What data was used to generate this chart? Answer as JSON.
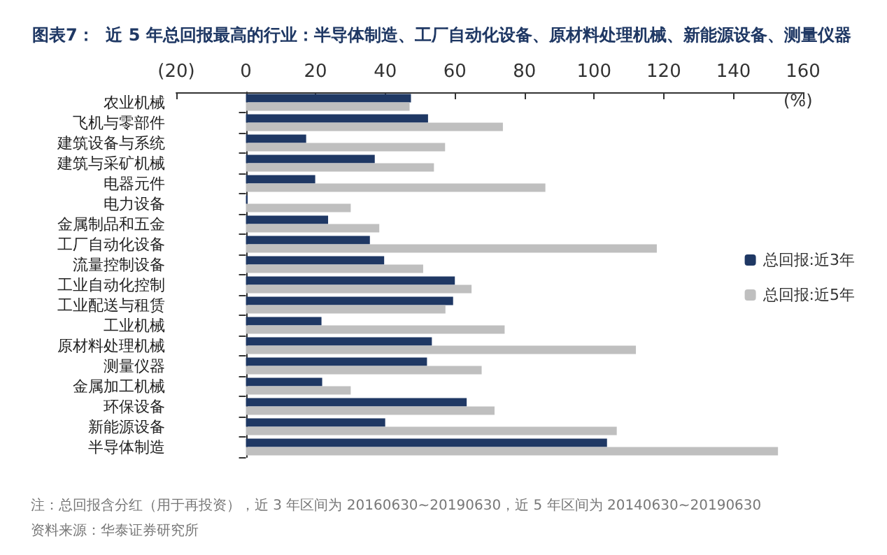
{
  "chart_data": {
    "type": "bar",
    "orientation": "horizontal",
    "title": "图表7：  近 5 年总回报最高的行业：半导体制造、工厂自动化设备、原材料处理机械、新能源设备、测量仪器",
    "xlabel": "(%)",
    "categories": [
      "农业机械",
      "飞机与零部件",
      "建筑设备与系统",
      "建筑与采矿机械",
      "电器元件",
      "电力设备",
      "金属制品和五金",
      "工厂自动化设备",
      "流量控制设备",
      "工业自动化控制",
      "工业配送与租赁",
      "工业机械",
      "原材料处理机械",
      "测量仪器",
      "金属加工机械",
      "环保设备",
      "新能源设备",
      "半导体制造"
    ],
    "series": [
      {
        "name": "总回报:近3年",
        "color": "#1f3864",
        "values": [
          47.4,
          52.3,
          17.3,
          37,
          19.9,
          0.5,
          23.6,
          35.6,
          39.7,
          60,
          59.5,
          21.7,
          53.4,
          52,
          21.9,
          63.4,
          40,
          103.7
        ]
      },
      {
        "name": "总回报:近5年",
        "color": "#bfbfbf",
        "values": [
          47,
          73.8,
          57.2,
          54,
          86,
          30.1,
          38.3,
          118,
          50.9,
          64.8,
          57.3,
          74.3,
          112,
          67.7,
          30.1,
          71.4,
          106.5,
          152.8
        ]
      }
    ],
    "xlim": [
      -20,
      160
    ],
    "xticks": [
      {
        "value": -20,
        "label": "(20)"
      },
      0,
      20,
      40,
      60,
      80,
      100,
      120,
      140,
      160
    ],
    "legend": "right",
    "annotations": [
      "注：总回报含分红（用于再投资），近 3 年区间为 20160630~20190630，近 5 年区间为 20140630~20190630",
      "资料来源：华泰证券研究所"
    ]
  }
}
